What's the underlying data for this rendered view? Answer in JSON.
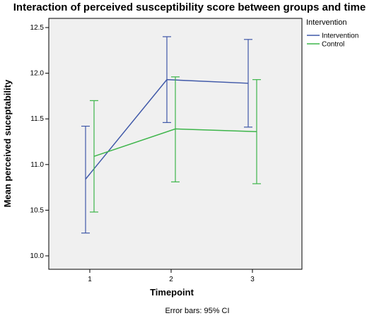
{
  "colors": {
    "plot_background": "#f0f0f0",
    "intervention": "#3f58a8",
    "control": "#3db54a",
    "axis": "#000000"
  },
  "chart_data": {
    "type": "line",
    "title": "Interaction of perceived susceptibility score between groups and time",
    "xlabel": "Timepoint",
    "ylabel": "Mean perceived suceptability",
    "categories": [
      "1",
      "2",
      "3"
    ],
    "ylim": [
      9.95,
      12.62
    ],
    "yticks": [
      "10.0",
      "10.5",
      "11.0",
      "11.5",
      "12.0",
      "12.5"
    ],
    "grid": false,
    "legend": {
      "title": "Intervention",
      "placement": "top-right outside"
    },
    "footnote": "Error bars: 95% CI",
    "series": [
      {
        "name": "Intervention",
        "color": "#3f58a8",
        "values": [
          10.84,
          11.93,
          11.89
        ],
        "ci_low": [
          10.25,
          11.46,
          11.41
        ],
        "ci_high": [
          11.42,
          12.4,
          12.37
        ]
      },
      {
        "name": "Control",
        "color": "#3db54a",
        "values": [
          11.09,
          11.39,
          11.36
        ],
        "ci_low": [
          10.48,
          10.81,
          10.79
        ],
        "ci_high": [
          11.7,
          11.96,
          11.93
        ]
      }
    ]
  }
}
